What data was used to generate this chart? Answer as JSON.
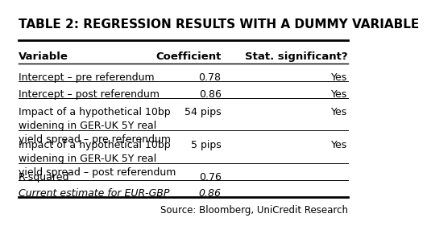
{
  "title": "TABLE 2: REGRESSION RESULTS WITH A DUMMY VARIABLE",
  "headers": [
    "Variable",
    "Coefficient",
    "Stat. significant?"
  ],
  "rows": [
    [
      "Intercept – pre referendum",
      "0.78",
      "Yes"
    ],
    [
      "Intercept – post referendum",
      "0.86",
      "Yes"
    ],
    [
      "Impact of a hypothetical 10bp\nwidening in GER-UK 5Y real\nyield spread – pre referendum",
      "54 pips",
      "Yes"
    ],
    [
      "Impact of a hypothetical 10bp\nwidening in GER-UK 5Y real\nyield spread – post referendum",
      "5 pips",
      "Yes"
    ],
    [
      "R-squared",
      "0.76",
      ""
    ],
    [
      "Current estimate for EUR-GBP",
      "0.86",
      ""
    ]
  ],
  "last_row_italic": true,
  "source_text": "Source: Bloomberg, UniCredit Research",
  "bg_color": "#ffffff",
  "text_color": "#000000",
  "line_color": "#000000",
  "header_font_size": 9.5,
  "body_font_size": 9.0,
  "title_font_size": 11.0
}
